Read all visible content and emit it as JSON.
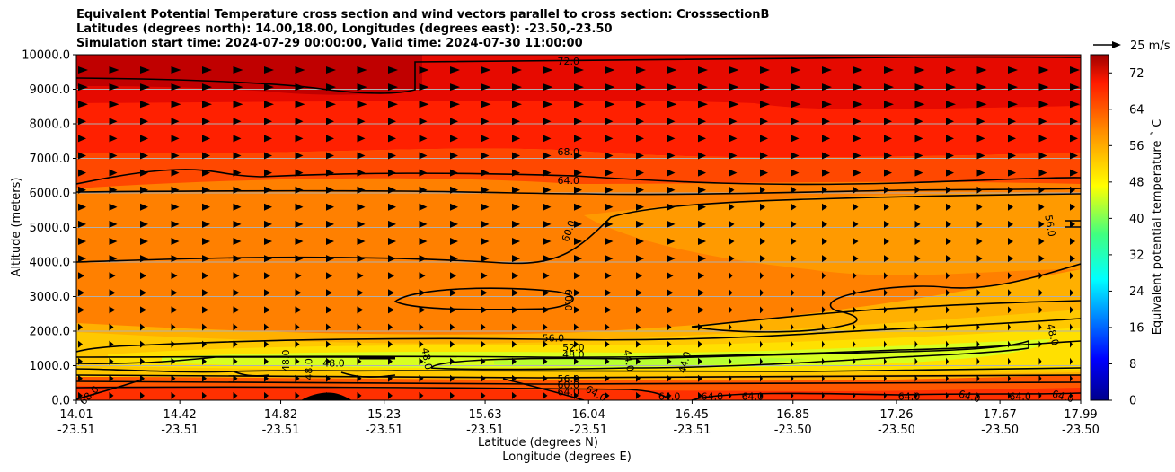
{
  "title_lines": [
    "Equivalent Potential Temperature cross section and wind vectors parallel to cross section: CrosssectionB",
    "Latitudes (degrees north): 14.00,18.00, Longitudes (degrees east): -23.50,-23.50",
    "Simulation start time: 2024-07-29 00:00:00, Valid time: 2024-07-30 11:00:00"
  ],
  "colors": {
    "low": "#00008b",
    "mid_cyan": "#00ffff",
    "mid_yellow": "#ffff00",
    "orange": "#ff7f00",
    "high": "#b00000"
  },
  "chart_data": {
    "type": "heatmap",
    "subtype": "filled-contour cross section with wind vectors and contour lines",
    "ylabel": "Altitude (meters)",
    "xlabel_lines": [
      "Latitude (degrees N)",
      "Longitude (degrees E)"
    ],
    "ylim": [
      0,
      10000
    ],
    "y_ticks": [
      "0.0",
      "1000.0",
      "2000.0",
      "3000.0",
      "4000.0",
      "5000.0",
      "6000.0",
      "7000.0",
      "8000.0",
      "9000.0",
      "10000.0"
    ],
    "y_tick_values": [
      0,
      1000,
      2000,
      3000,
      4000,
      5000,
      6000,
      7000,
      8000,
      9000,
      10000
    ],
    "x_ticks": [
      {
        "lat": "14.01",
        "lon": "-23.51"
      },
      {
        "lat": "14.42",
        "lon": "-23.51"
      },
      {
        "lat": "14.82",
        "lon": "-23.51"
      },
      {
        "lat": "15.23",
        "lon": "-23.51"
      },
      {
        "lat": "15.63",
        "lon": "-23.51"
      },
      {
        "lat": "16.04",
        "lon": "-23.51"
      },
      {
        "lat": "16.45",
        "lon": "-23.51"
      },
      {
        "lat": "16.85",
        "lon": "-23.50"
      },
      {
        "lat": "17.26",
        "lon": "-23.50"
      },
      {
        "lat": "17.67",
        "lon": "-23.50"
      },
      {
        "lat": "17.99",
        "lon": "-23.50"
      }
    ],
    "colorbar": {
      "label": "Equivalent potential temperature $^\\circ$C",
      "label_display": "Equivalent potential temperature ˚ C",
      "min": 0,
      "max": 76,
      "ticks": [
        "0",
        "8",
        "16",
        "24",
        "32",
        "40",
        "48",
        "56",
        "64",
        "72"
      ],
      "tick_values": [
        0,
        8,
        16,
        24,
        32,
        40,
        48,
        56,
        64,
        72
      ]
    },
    "quiver_key": {
      "label": "25 m/s"
    },
    "grid": "horizontal",
    "contour_labels": [
      {
        "text": "72.0",
        "lat": 15.96,
        "alt": 9820,
        "rot": 0
      },
      {
        "text": "68.0",
        "lat": 15.96,
        "alt": 7200,
        "rot": 0
      },
      {
        "text": "64.0",
        "lat": 15.96,
        "alt": 6370,
        "rot": 0
      },
      {
        "text": "60.0",
        "lat": 15.96,
        "alt": 4900,
        "rot": -70
      },
      {
        "text": "60.0",
        "lat": 15.96,
        "alt": 2900,
        "rot": 90
      },
      {
        "text": "56.0",
        "lat": 17.87,
        "alt": 5050,
        "rot": 80
      },
      {
        "text": "56.0",
        "lat": 15.9,
        "alt": 1800,
        "rot": 0
      },
      {
        "text": "52.0",
        "lat": 15.98,
        "alt": 1530,
        "rot": 0
      },
      {
        "text": "48.0",
        "lat": 15.98,
        "alt": 1330,
        "rot": 0
      },
      {
        "text": "48.0",
        "lat": 15.03,
        "alt": 1080,
        "rot": 0
      },
      {
        "text": "48.0",
        "lat": 14.84,
        "alt": 1150,
        "rot": -90
      },
      {
        "text": "48.0",
        "lat": 14.93,
        "alt": 900,
        "rot": -90
      },
      {
        "text": "48.0",
        "lat": 15.4,
        "alt": 1200,
        "rot": 80
      },
      {
        "text": "44.0",
        "lat": 16.2,
        "alt": 1150,
        "rot": 80
      },
      {
        "text": "44.0",
        "lat": 16.42,
        "alt": 1100,
        "rot": -75
      },
      {
        "text": "48.0",
        "lat": 17.88,
        "alt": 1900,
        "rot": 75
      },
      {
        "text": "56.0",
        "lat": 15.96,
        "alt": 620,
        "rot": 0
      },
      {
        "text": "60.0",
        "lat": 15.96,
        "alt": 450,
        "rot": 0
      },
      {
        "text": "64.0",
        "lat": 15.96,
        "alt": 250,
        "rot": 0
      },
      {
        "text": "64.0",
        "lat": 16.07,
        "alt": 200,
        "rot": 30
      },
      {
        "text": "64.0",
        "lat": 16.36,
        "alt": 120,
        "rot": 0
      },
      {
        "text": "64.0",
        "lat": 16.53,
        "alt": 120,
        "rot": 0
      },
      {
        "text": "64.0",
        "lat": 16.69,
        "alt": 120,
        "rot": 0
      },
      {
        "text": "64.0",
        "lat": 17.31,
        "alt": 120,
        "rot": 0
      },
      {
        "text": "64.0",
        "lat": 17.55,
        "alt": 120,
        "rot": 15
      },
      {
        "text": "64.0",
        "lat": 17.75,
        "alt": 120,
        "rot": 0
      },
      {
        "text": "64.0",
        "lat": 17.92,
        "alt": 120,
        "rot": 15
      },
      {
        "text": "68.0",
        "lat": 14.06,
        "alt": 150,
        "rot": -45
      }
    ]
  }
}
